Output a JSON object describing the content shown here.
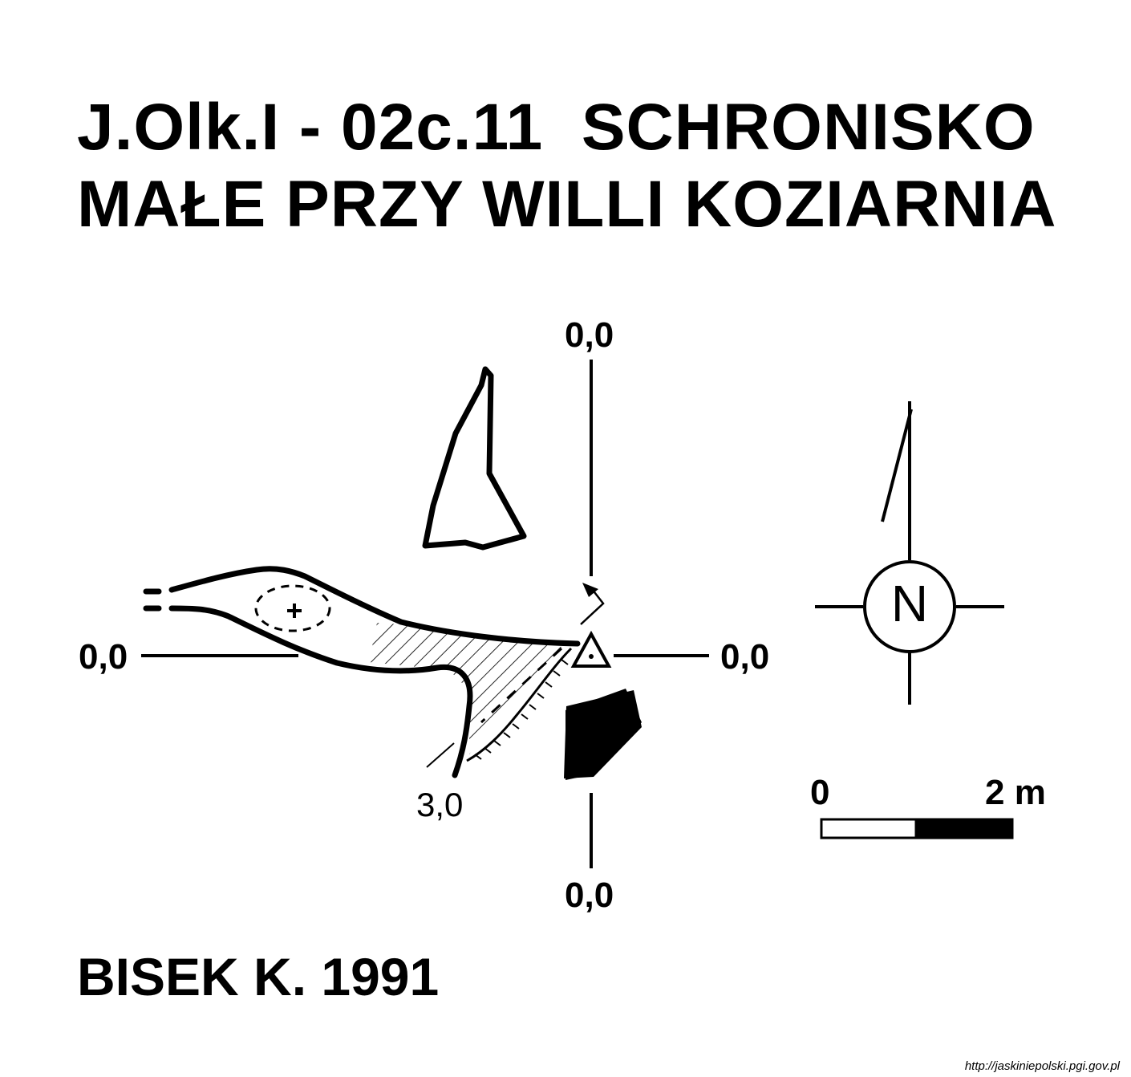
{
  "title": {
    "line1": "J.Olk.I - 02c.11  SCHRONISKO",
    "line2": "MAŁE PRZY WILLI KOZIARNIA"
  },
  "axis_labels": {
    "top": "0,0",
    "left": "0,0",
    "right": "0,0",
    "bottom": "0,0"
  },
  "depth_label": "3,0",
  "north_letter": "N",
  "scale_bar": {
    "start_label": "0",
    "end_label": "2 m"
  },
  "author": "BISEK K. 1991",
  "credit": "http://jaskiniepolski.pgi.gov.pl",
  "colors": {
    "ink": "#000000",
    "paper": "#ffffff"
  }
}
